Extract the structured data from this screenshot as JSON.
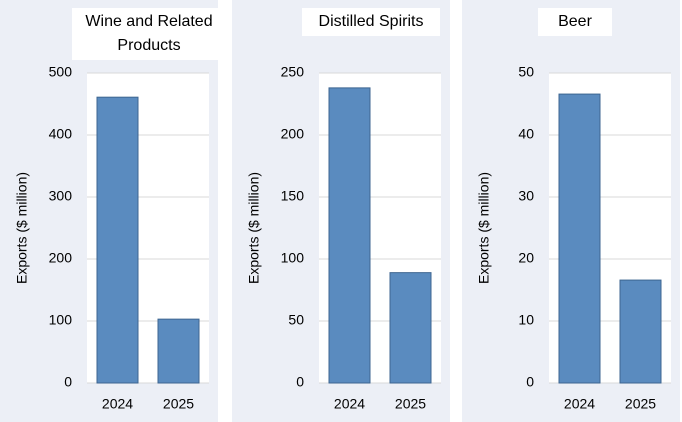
{
  "chart_data": [
    {
      "type": "bar",
      "title": "Wine and Related Products",
      "y_label": "Exports ($ million)",
      "categories": [
        "2024",
        "2025"
      ],
      "values": [
        461,
        103
      ],
      "color": "#5a8bbf",
      "ylim": [
        0,
        500
      ],
      "yticks": [
        0,
        100,
        200,
        300,
        400,
        500
      ],
      "grid": true
    },
    {
      "type": "bar",
      "title": "Distilled Spirits",
      "y_label": "Exports ($ million)",
      "categories": [
        "2024",
        "2025"
      ],
      "values": [
        238,
        89
      ],
      "color": "#5a8bbf",
      "ylim": [
        0,
        250
      ],
      "yticks": [
        0,
        50,
        100,
        150,
        200,
        250
      ],
      "grid": true
    },
    {
      "type": "bar",
      "title": "Beer",
      "y_label": "Exports ($ million)",
      "categories": [
        "2024",
        "2025"
      ],
      "values": [
        46.6,
        16.6
      ],
      "color": "#5a8bbf",
      "ylim": [
        0,
        50
      ],
      "yticks": [
        0,
        10,
        20,
        30,
        40,
        50
      ],
      "grid": true
    }
  ]
}
